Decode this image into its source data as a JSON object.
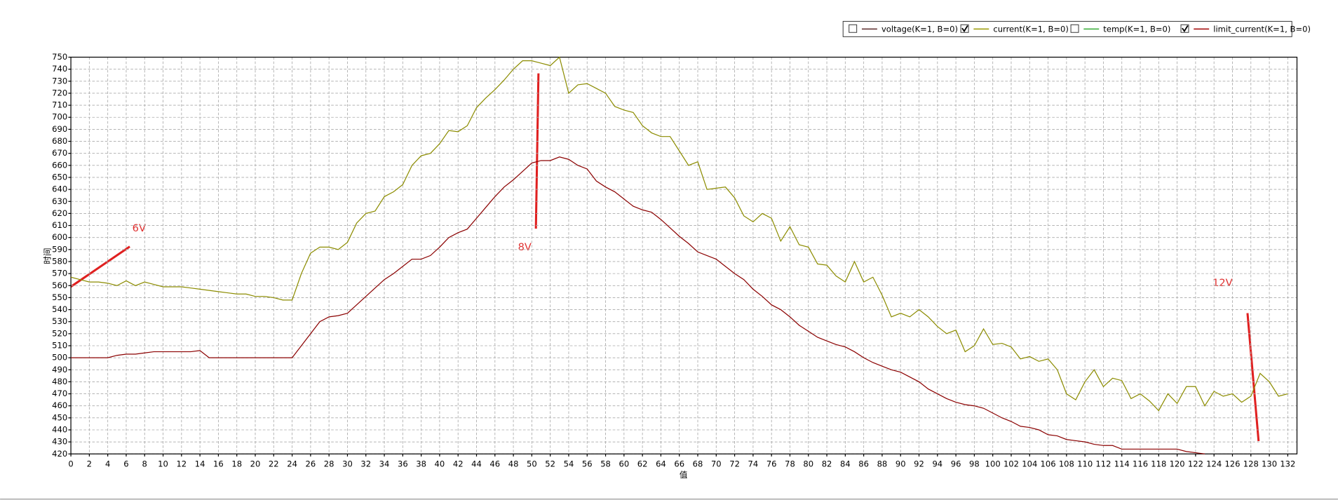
{
  "chart_data": {
    "type": "line",
    "y_label": "时间",
    "x_label": "值",
    "legend": [
      {
        "label": "voltage(K=1, B=0)",
        "color": "#5a2a2a",
        "checked": false
      },
      {
        "label": "current(K=1, B=0)",
        "color": "#999900",
        "checked": true
      },
      {
        "label": "temp(K=1, B=0)",
        "color": "#33aa33",
        "checked": false
      },
      {
        "label": "limit_current(K=1, B=0)",
        "color": "#a00000",
        "checked": true
      }
    ],
    "annotations": [
      "6V",
      "8V",
      "12V"
    ],
    "x": [
      0,
      1,
      2,
      3,
      4,
      5,
      6,
      7,
      8,
      9,
      10,
      11,
      12,
      13,
      14,
      15,
      16,
      17,
      18,
      19,
      20,
      21,
      22,
      23,
      24,
      25,
      26,
      27,
      28,
      29,
      30,
      31,
      32,
      33,
      34,
      35,
      36,
      37,
      38,
      39,
      40,
      41,
      42,
      43,
      44,
      45,
      46,
      47,
      48,
      49,
      50,
      51,
      52,
      53,
      54,
      55,
      56,
      57,
      58,
      59,
      60,
      61,
      62,
      63,
      64,
      65,
      66,
      67,
      68,
      69,
      70,
      71,
      72,
      73,
      74,
      75,
      76,
      77,
      78,
      79,
      80,
      81,
      82,
      83,
      84,
      85,
      86,
      87,
      88,
      89,
      90,
      91,
      92,
      93,
      94,
      95,
      96,
      97,
      98,
      99,
      100,
      101,
      102,
      103,
      104,
      105,
      106,
      107,
      108,
      109,
      110,
      111,
      112,
      113,
      114,
      115,
      116,
      117,
      118,
      119,
      120,
      121,
      122,
      123,
      124,
      125,
      126,
      127,
      128,
      129,
      130,
      131,
      132
    ],
    "series": [
      {
        "color": "#8c8c00",
        "values": [
          567,
          565,
          563,
          563,
          562,
          560,
          564,
          560,
          563,
          561,
          559,
          559,
          559,
          558,
          557,
          556,
          555,
          554,
          553,
          553,
          551,
          551,
          550,
          548,
          548,
          570,
          587,
          592,
          592,
          590,
          596,
          612,
          620,
          622,
          634,
          638,
          644,
          660,
          668,
          670,
          678,
          689,
          688,
          693,
          708,
          716,
          723,
          731,
          740,
          747,
          747,
          745,
          743,
          750,
          720,
          727,
          728,
          724,
          720,
          709,
          706,
          704,
          693,
          687,
          684,
          684,
          672,
          660,
          663,
          640,
          641,
          642,
          633,
          618,
          613,
          620,
          616,
          597,
          609,
          594,
          592,
          578,
          577,
          568,
          563,
          580,
          563,
          567,
          552,
          534,
          537,
          534,
          540,
          534,
          526,
          520,
          523,
          505,
          510,
          524,
          511,
          512,
          509,
          499,
          501,
          497,
          499,
          490,
          470,
          465,
          480,
          490,
          476,
          483,
          481,
          466,
          470,
          464,
          456,
          470,
          462,
          476,
          476,
          460,
          472,
          468,
          470,
          463,
          468,
          487,
          480,
          468,
          470
        ]
      },
      {
        "color": "#8b0000",
        "values": [
          500,
          500,
          500,
          500,
          500,
          502,
          503,
          503,
          504,
          505,
          505,
          505,
          505,
          505,
          506,
          500,
          500,
          500,
          500,
          500,
          500,
          500,
          500,
          500,
          500,
          510,
          520,
          530,
          534,
          535,
          537,
          544,
          551,
          558,
          565,
          570,
          576,
          582,
          582,
          585,
          592,
          600,
          604,
          607,
          616,
          625,
          634,
          642,
          648,
          655,
          662,
          664,
          664,
          667,
          665,
          660,
          657,
          647,
          642,
          638,
          632,
          626,
          623,
          621,
          615,
          608,
          601,
          595,
          588,
          585,
          582,
          576,
          570,
          565,
          557,
          551,
          544,
          540,
          534,
          527,
          522,
          517,
          514,
          511,
          509,
          505,
          500,
          496,
          493,
          490,
          488,
          484,
          480,
          474,
          470,
          466,
          463,
          461,
          460,
          458,
          454,
          450,
          447,
          443,
          442,
          440,
          436,
          435,
          432,
          431,
          430,
          428,
          427,
          427,
          424,
          424,
          424,
          424,
          424,
          424,
          424,
          422,
          421,
          420,
          null,
          null,
          null,
          null,
          null,
          null,
          null,
          null,
          null
        ]
      }
    ],
    "xlim": [
      0,
      133
    ],
    "ylim": [
      420,
      750
    ],
    "xticks": [
      0,
      2,
      4,
      6,
      8,
      10,
      12,
      14,
      16,
      18,
      20,
      22,
      24,
      26,
      28,
      30,
      32,
      34,
      36,
      38,
      40,
      42,
      44,
      46,
      48,
      50,
      52,
      54,
      56,
      58,
      60,
      62,
      64,
      66,
      68,
      70,
      72,
      74,
      76,
      78,
      80,
      82,
      84,
      86,
      88,
      90,
      92,
      94,
      96,
      98,
      100,
      102,
      104,
      106,
      108,
      110,
      112,
      114,
      116,
      118,
      120,
      122,
      124,
      126,
      128,
      130,
      132
    ],
    "yticks": [
      420,
      430,
      440,
      450,
      460,
      470,
      480,
      490,
      500,
      510,
      520,
      530,
      540,
      550,
      560,
      570,
      580,
      590,
      600,
      610,
      620,
      630,
      640,
      650,
      660,
      670,
      680,
      690,
      700,
      710,
      720,
      730,
      740,
      750
    ],
    "grid": true
  }
}
